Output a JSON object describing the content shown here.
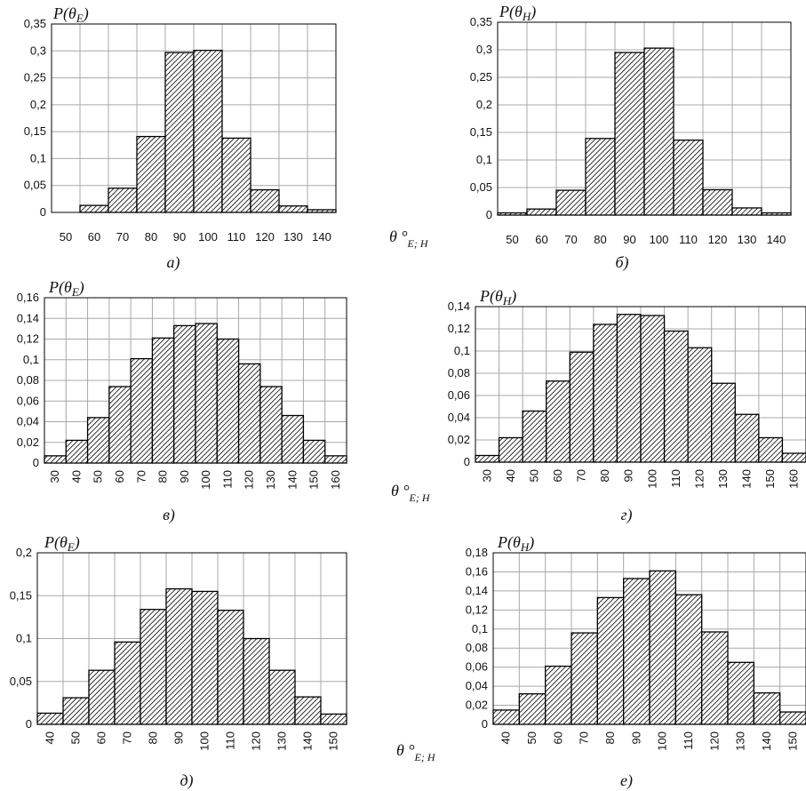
{
  "figure": {
    "x_unit_label": "θ °",
    "x_unit_subscript": "E; H"
  },
  "chart_data": [
    {
      "type": "bar",
      "caption": "а)",
      "title": "P(θE)",
      "title_base": "P(θ",
      "title_sub": "E",
      "title_close": ")",
      "categories": [
        "50",
        "60",
        "70",
        "80",
        "90",
        "100",
        "110",
        "120",
        "130",
        "140"
      ],
      "values": [
        0.0,
        0.013,
        0.045,
        0.141,
        0.297,
        0.301,
        0.138,
        0.042,
        0.012,
        0.005
      ],
      "yticks": [
        "0",
        "0,05",
        "0,1",
        "0,15",
        "0,2",
        "0,25",
        "0,3",
        "0,35"
      ],
      "ylim": [
        0,
        0.35
      ],
      "xtick_rotation": 0,
      "grid": true,
      "hatch": true
    },
    {
      "type": "bar",
      "caption": "б)",
      "title": "P(θH)",
      "title_base": "P(θ",
      "title_sub": "H",
      "title_close": ")",
      "categories": [
        "50",
        "60",
        "70",
        "80",
        "90",
        "100",
        "110",
        "120",
        "130",
        "140"
      ],
      "values": [
        0.004,
        0.011,
        0.045,
        0.139,
        0.295,
        0.303,
        0.136,
        0.046,
        0.013,
        0.004
      ],
      "yticks": [
        "0",
        "0,05",
        "0,1",
        "0,15",
        "0,2",
        "0,25",
        "0,3",
        "0,35"
      ],
      "ylim": [
        0,
        0.35
      ],
      "xtick_rotation": 0,
      "grid": true,
      "hatch": true
    },
    {
      "type": "bar",
      "caption": "в)",
      "title": "P(θE)",
      "title_base": "P(θ",
      "title_sub": "E",
      "title_close": ")",
      "categories": [
        "30",
        "40",
        "50",
        "60",
        "70",
        "80",
        "90",
        "100",
        "110",
        "120",
        "130",
        "140",
        "150",
        "160"
      ],
      "values": [
        0.007,
        0.022,
        0.044,
        0.074,
        0.101,
        0.121,
        0.133,
        0.135,
        0.12,
        0.096,
        0.074,
        0.046,
        0.022,
        0.007
      ],
      "yticks": [
        "0",
        "0,02",
        "0,04",
        "0,06",
        "0,08",
        "0,1",
        "0,12",
        "0,14",
        "0,16"
      ],
      "ylim": [
        0,
        0.16
      ],
      "xtick_rotation": -90,
      "grid": true,
      "hatch": true
    },
    {
      "type": "bar",
      "caption": "г)",
      "title": "P(θH)",
      "title_base": "P(θ",
      "title_sub": "H",
      "title_close": ")",
      "categories": [
        "30",
        "40",
        "50",
        "60",
        "70",
        "80",
        "90",
        "100",
        "110",
        "120",
        "130",
        "140",
        "150",
        "160"
      ],
      "values": [
        0.006,
        0.022,
        0.046,
        0.073,
        0.099,
        0.124,
        0.133,
        0.132,
        0.118,
        0.103,
        0.071,
        0.043,
        0.022,
        0.008
      ],
      "yticks": [
        "0",
        "0,02",
        "0,04",
        "0,06",
        "0,08",
        "0,1",
        "0,12",
        "0,14"
      ],
      "ylim": [
        0,
        0.14
      ],
      "xtick_rotation": -90,
      "grid": true,
      "hatch": true
    },
    {
      "type": "bar",
      "caption": "д)",
      "title": "P(θE)",
      "title_base": "P(θ",
      "title_sub": "E",
      "title_close": ")",
      "categories": [
        "40",
        "50",
        "60",
        "70",
        "80",
        "90",
        "100",
        "110",
        "120",
        "130",
        "140",
        "150"
      ],
      "values": [
        0.013,
        0.031,
        0.063,
        0.096,
        0.134,
        0.158,
        0.155,
        0.133,
        0.1,
        0.063,
        0.032,
        0.012
      ],
      "yticks": [
        "0",
        "0,05",
        "0,1",
        "0,15",
        "0,2"
      ],
      "ylim": [
        0,
        0.2
      ],
      "xtick_rotation": -90,
      "grid": true,
      "hatch": true
    },
    {
      "type": "bar",
      "caption": "е)",
      "title": "P(θH)",
      "title_base": "P(θ",
      "title_sub": "H",
      "title_close": ")",
      "categories": [
        "40",
        "50",
        "60",
        "70",
        "80",
        "90",
        "100",
        "110",
        "120",
        "130",
        "140",
        "150"
      ],
      "values": [
        0.015,
        0.032,
        0.061,
        0.096,
        0.133,
        0.153,
        0.161,
        0.136,
        0.097,
        0.065,
        0.033,
        0.013
      ],
      "yticks": [
        "0",
        "0,02",
        "0,04",
        "0,06",
        "0,08",
        "0,1",
        "0,12",
        "0,14",
        "0,16",
        "0,18"
      ],
      "ylim": [
        0,
        0.18
      ],
      "xtick_rotation": -90,
      "grid": true,
      "hatch": true
    }
  ]
}
